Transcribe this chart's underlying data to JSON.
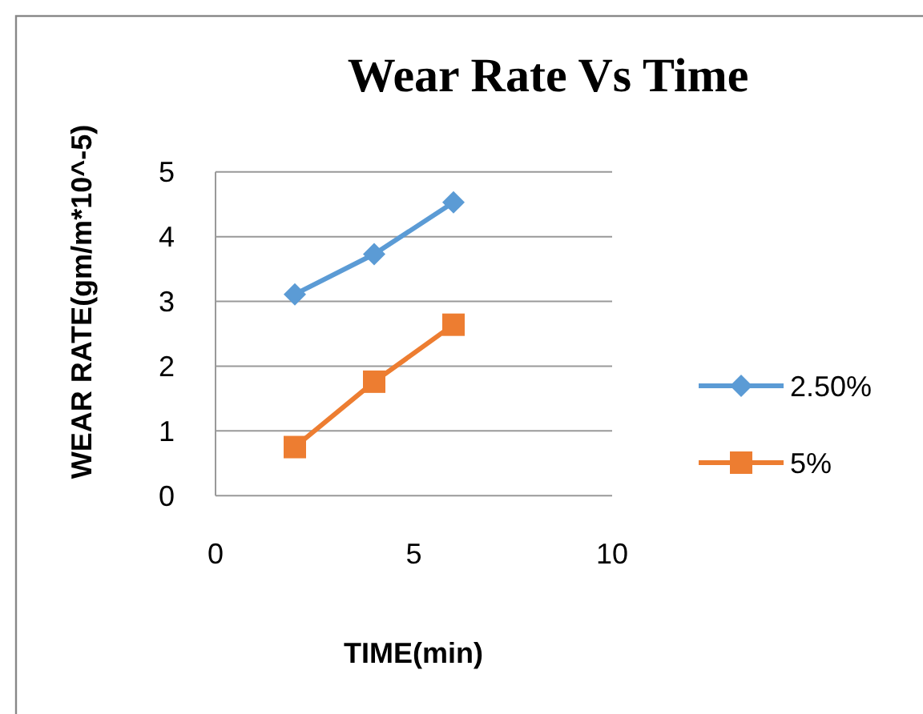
{
  "chart_data": {
    "type": "line",
    "title": "Wear Rate Vs Time",
    "xlabel": "TIME(min)",
    "ylabel": "WEAR RATE(gm/m*10^-5)",
    "x": [
      2,
      4,
      6
    ],
    "series": [
      {
        "name": "2.50%",
        "color": "#5b9bd5",
        "values": [
          3.11,
          3.73,
          4.53
        ],
        "marker": "diamond"
      },
      {
        "name": "5%",
        "color": "#ed7d31",
        "values": [
          0.75,
          1.76,
          2.64
        ],
        "marker": "square"
      }
    ],
    "xlim": [
      0,
      10
    ],
    "xticks": [
      0,
      5,
      10
    ],
    "ylim": [
      0,
      5
    ],
    "yticks": [
      0,
      1,
      2,
      3,
      4,
      5
    ],
    "grid": "y",
    "legend": "right"
  }
}
